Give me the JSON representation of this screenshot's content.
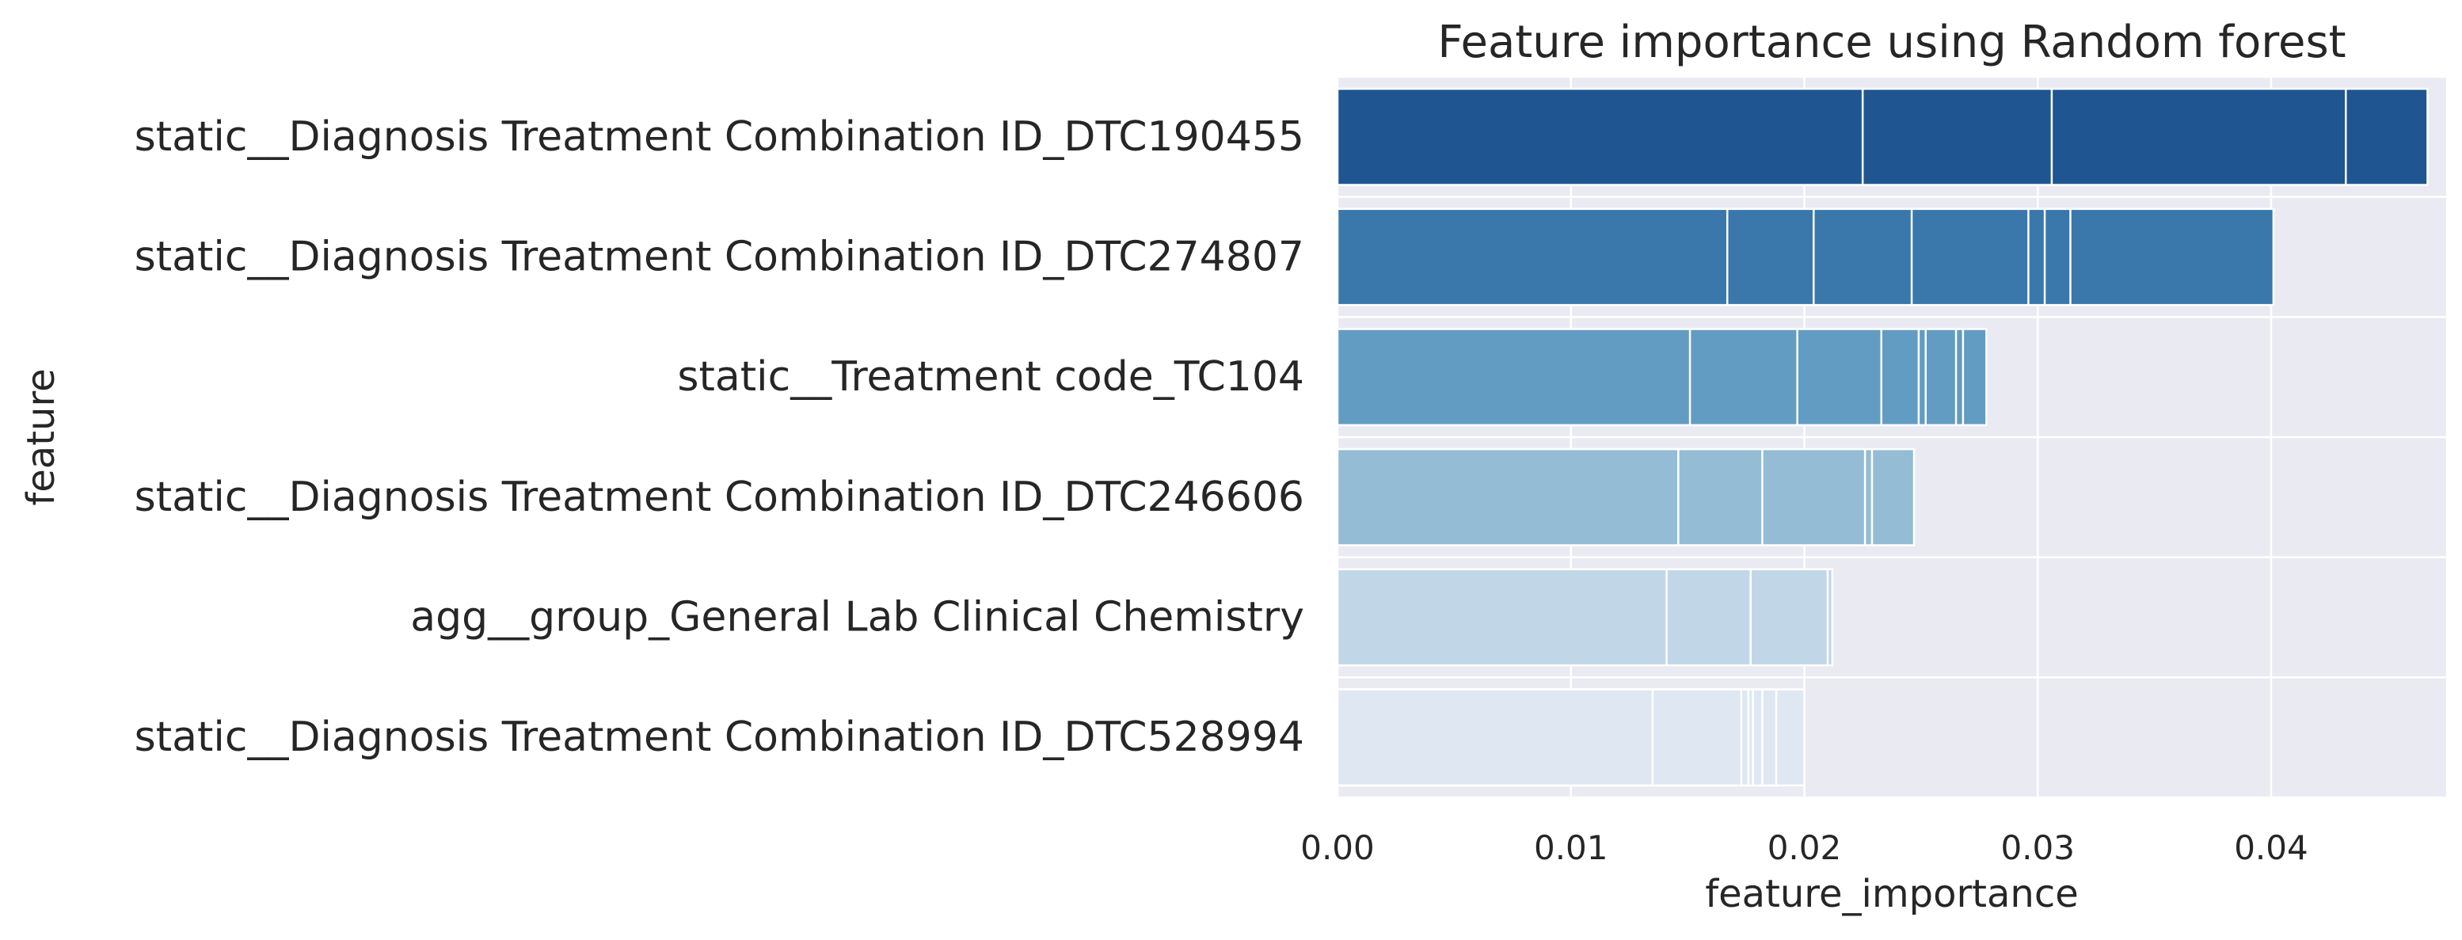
{
  "chart_data": {
    "type": "bar",
    "orientation": "horizontal",
    "title": "Feature importance using Random forest",
    "xlabel": "feature_importance",
    "ylabel": "feature",
    "xlim": [
      0,
      0.0475
    ],
    "xticks": [
      0.0,
      0.01,
      0.02,
      0.03,
      0.04
    ],
    "xtick_labels": [
      "0.00",
      "0.01",
      "0.02",
      "0.03",
      "0.04"
    ],
    "grid": true,
    "categories": [
      "static__Diagnosis Treatment Combination ID_DTC190455",
      "static__Diagnosis Treatment Combination ID_DTC274807",
      "static__Treatment code_TC104",
      "static__Diagnosis Treatment Combination ID_DTC246606",
      "agg__group_General Lab Clinical Chemistry",
      "static__Diagnosis Treatment Combination ID_DTC528994"
    ],
    "segments": [
      [
        0.0225,
        0.0306,
        0.0432,
        0.0467
      ],
      [
        0.0167,
        0.0204,
        0.0246,
        0.0296,
        0.0303,
        0.0314,
        0.0401
      ],
      [
        0.0151,
        0.0197,
        0.0233,
        0.0249,
        0.0252,
        0.0265,
        0.0268,
        0.0278
      ],
      [
        0.0146,
        0.0182,
        0.0226,
        0.0229,
        0.0247
      ],
      [
        0.0141,
        0.0177,
        0.021,
        0.0212
      ],
      [
        0.0135,
        0.0173,
        0.0176,
        0.0178,
        0.0182,
        0.0188,
        0.02
      ]
    ],
    "colors": [
      "#1f5591",
      "#3a78ab",
      "#639cc2",
      "#94bcd4",
      "#c1d7e7",
      "#dfe8f2"
    ],
    "background": "#eaeaf2",
    "gridline_color": "#ffffff"
  }
}
